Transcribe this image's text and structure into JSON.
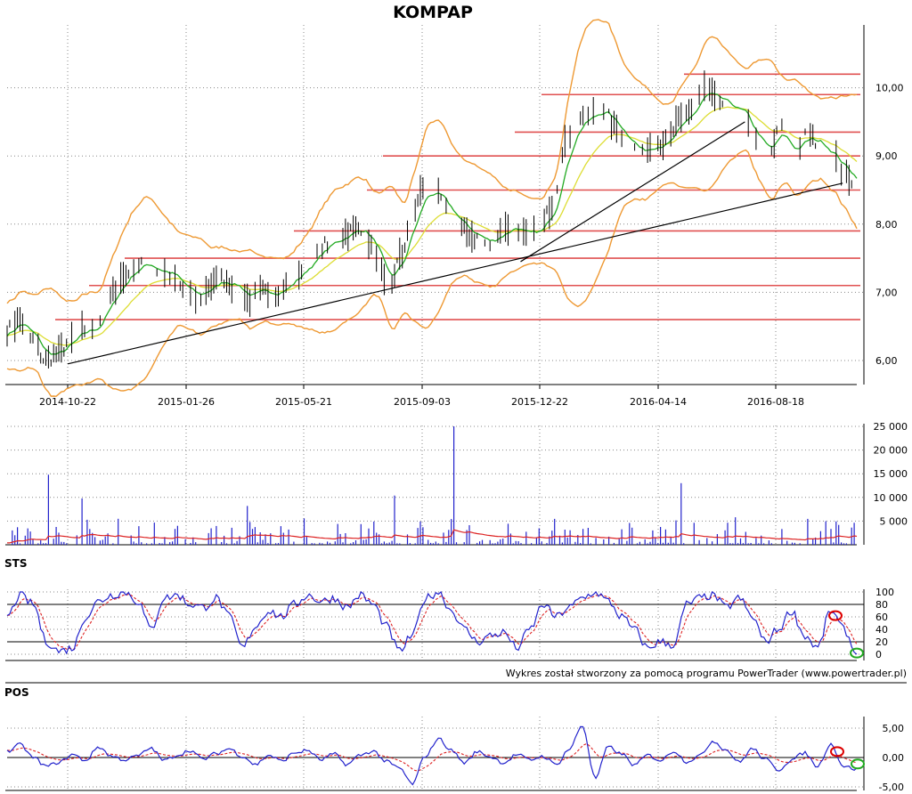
{
  "chart_data": [
    {
      "type": "line",
      "panel": "price",
      "title": "KOMPAP",
      "x_tick_labels": [
        "2014-10-22",
        "2015-01-26",
        "2015-05-21",
        "2015-09-03",
        "2015-12-22",
        "2016-04-14",
        "2016-08-18"
      ],
      "y_tick_labels": [
        "6,00",
        "7,00",
        "8,00",
        "9,00",
        "10,00"
      ],
      "ylim": [
        5.7,
        10.7
      ],
      "grid": true,
      "close_series": [
        6.45,
        6.6,
        6.3,
        6.0,
        6.1,
        6.3,
        6.45,
        6.5,
        6.9,
        7.2,
        7.4,
        7.45,
        7.3,
        7.25,
        7.0,
        6.9,
        7.1,
        7.2,
        7.1,
        6.9,
        7.0,
        7.0,
        7.1,
        7.3,
        7.5,
        7.7,
        7.8,
        7.9,
        7.95,
        7.6,
        7.0,
        7.5,
        8.2,
        8.6,
        8.4,
        8.1,
        7.9,
        7.8,
        7.7,
        7.9,
        8.0,
        7.8,
        7.9,
        8.3,
        9.2,
        9.6,
        9.6,
        9.7,
        9.4,
        9.2,
        9.0,
        9.2,
        9.2,
        9.5,
        9.7,
        10.0,
        9.8,
        9.7,
        9.6,
        9.2,
        9.0,
        9.4,
        9.0,
        9.3,
        9.2,
        9.0,
        8.75,
        8.6
      ],
      "support_resistance_levels": [
        6.6,
        7.1,
        7.5,
        7.9,
        8.5,
        9.0,
        9.35,
        9.9,
        10.2
      ],
      "trendlines": [
        {
          "from": [
            "2014-10-22",
            5.95
          ],
          "to": [
            "2016-10-20",
            8.6
          ]
        },
        {
          "from": [
            "2015-12-22",
            7.45
          ],
          "to": [
            "2016-07-20",
            9.5
          ]
        }
      ]
    },
    {
      "type": "bar",
      "panel": "volume",
      "y_tick_labels": [
        "5 000",
        "10 000",
        "15 000",
        "20 000",
        "25 000"
      ],
      "ylim": [
        0,
        25000
      ],
      "peaks": [
        {
          "date": "2014-10-05",
          "value": 14800
        },
        {
          "date": "2014-11-05",
          "value": 9800
        },
        {
          "date": "2015-04-10",
          "value": 8200
        },
        {
          "date": "2015-08-25",
          "value": 10400
        },
        {
          "date": "2015-10-20",
          "value": 25000
        },
        {
          "date": "2016-05-20",
          "value": 13000
        }
      ]
    },
    {
      "type": "line",
      "panel": "oscillator",
      "panel_label": "STS",
      "y_tick_labels": [
        "100",
        "80",
        "60",
        "40",
        "20",
        "0"
      ],
      "ylim": [
        -5,
        105
      ],
      "levels": [
        20,
        80
      ],
      "series_main": [
        60,
        95,
        80,
        20,
        5,
        10,
        60,
        85,
        95,
        100,
        85,
        40,
        90,
        95,
        80,
        75,
        90,
        60,
        10,
        45,
        70,
        60,
        80,
        95,
        85,
        90,
        75,
        95,
        80,
        45,
        5,
        30,
        90,
        100,
        70,
        40,
        20,
        30,
        35,
        10,
        40,
        80,
        60,
        75,
        90,
        100,
        85,
        60,
        40,
        10,
        20,
        15,
        80,
        90,
        95,
        75,
        90,
        60,
        20,
        40,
        70,
        30,
        10,
        70,
        40,
        0
      ]
    },
    {
      "type": "line",
      "panel": "oscillator",
      "panel_label": "POS",
      "y_tick_labels": [
        "5,00",
        "0,00",
        "-5,00"
      ],
      "ylim": [
        -5.6,
        5.6
      ],
      "series_main": [
        1,
        2.2,
        0,
        -1.5,
        -0.8,
        0.5,
        -0.5,
        1.8,
        0.2,
        -0.4,
        0.3,
        1.6,
        -0.5,
        0.4,
        1.2,
        -0.3,
        0.7,
        1.5,
        0.2,
        -1.2,
        0.4,
        -0.6,
        0.8,
        1.2,
        -0.4,
        0.6,
        -1.2,
        0.4,
        1.1,
        -0.7,
        -1.8,
        -4.5,
        0.3,
        3.2,
        1.2,
        -0.9,
        1.0,
        0.1,
        -0.9,
        0.5,
        -0.4,
        0.2,
        -1.2,
        1.4,
        5.4,
        -3.5,
        1.8,
        0.6,
        -1.3,
        0.4,
        -0.5,
        1.1,
        -0.7,
        0.3,
        2.8,
        1.3,
        -0.8,
        1.5,
        -0.3,
        -2.1,
        -0.4,
        0.8,
        -1.5,
        2.3,
        -1.5,
        -2.0
      ]
    }
  ],
  "credit": "Wykres został stworzony za pomocą programu PowerTrader (www.powertrader.pl)",
  "colors": {
    "candle": "#000000",
    "bollinger": "#ee9933",
    "ma_short": "#22aa22",
    "ma_long": "#dddd33",
    "level": "#e05050",
    "trendline": "#000000",
    "volume_bar": "#2222cc",
    "volume_avg": "#dd2222",
    "osc_main": "#2222cc",
    "osc_signal": "#dd2222",
    "marker_red": "#dd0000",
    "marker_green": "#22aa22",
    "grid": "#888888"
  }
}
